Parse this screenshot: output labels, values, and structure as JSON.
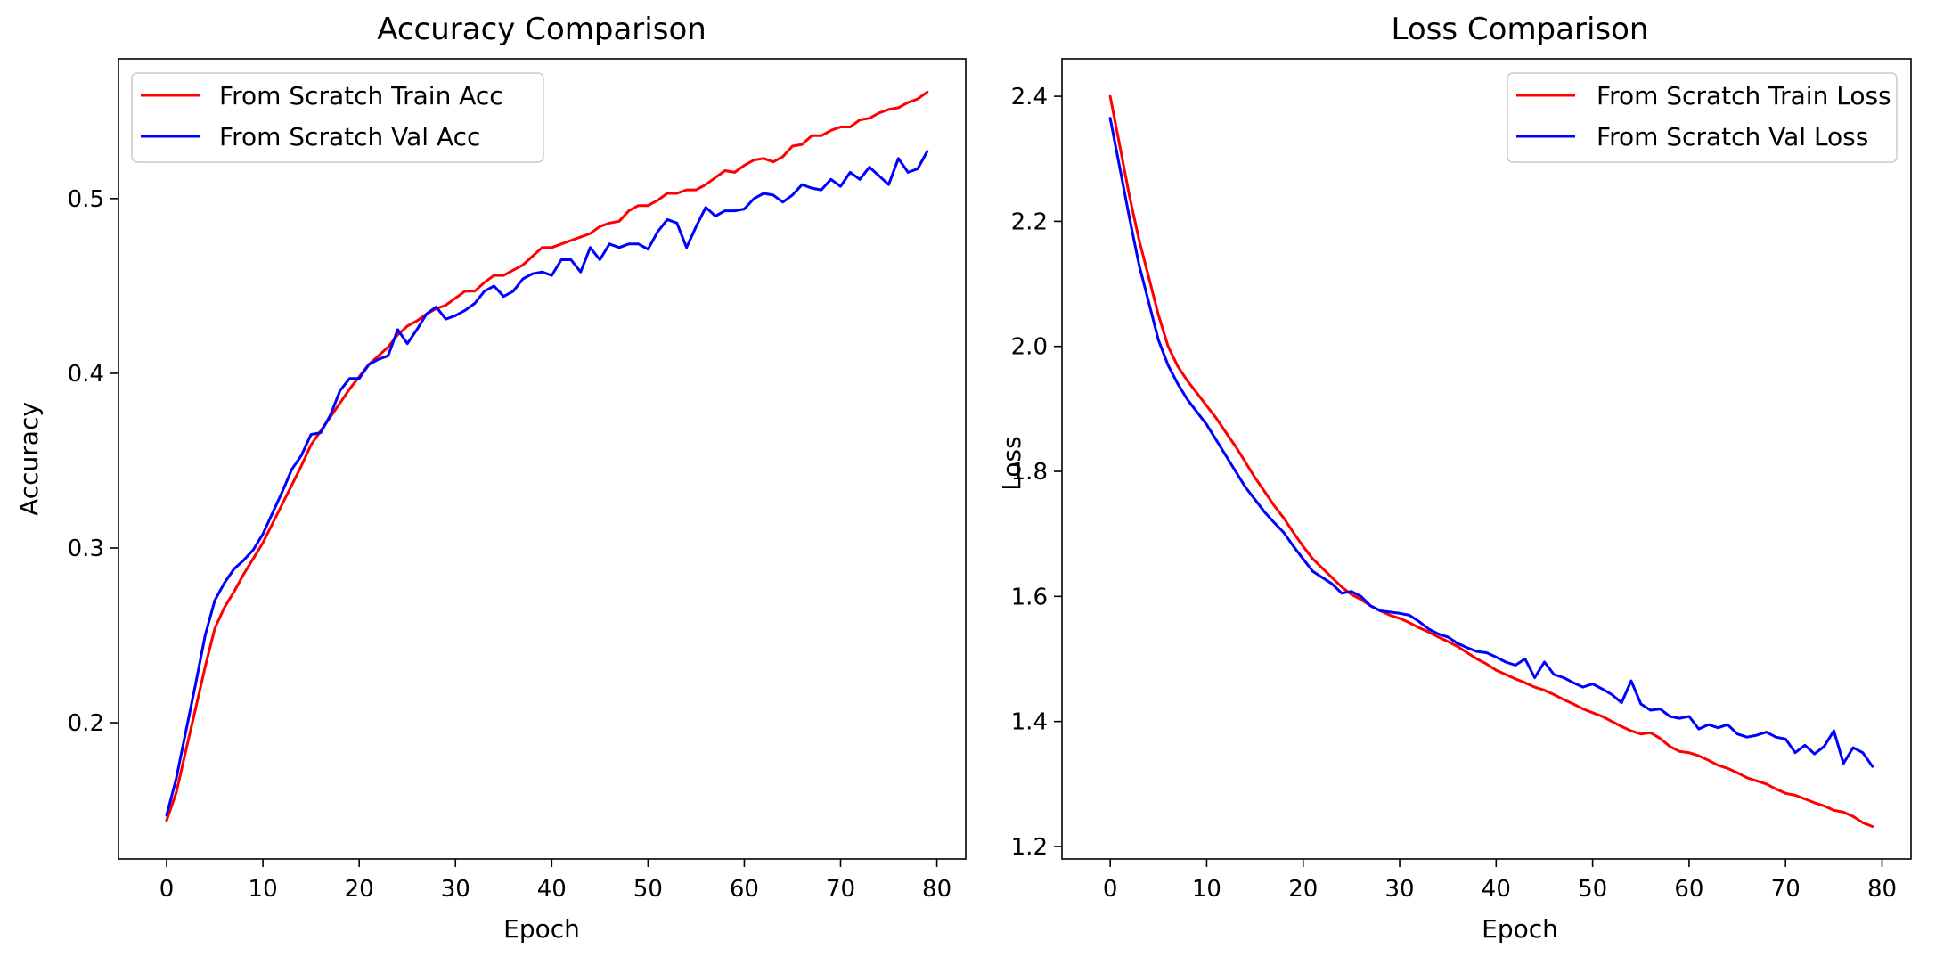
{
  "chart_data": [
    {
      "type": "line",
      "title": "Accuracy Comparison",
      "xlabel": "Epoch",
      "ylabel": "Accuracy",
      "xlim": [
        -5,
        83
      ],
      "ylim": [
        0.122,
        0.58
      ],
      "xticks": [
        0,
        10,
        20,
        30,
        40,
        50,
        60,
        70,
        80
      ],
      "yticks": [
        0.2,
        0.3,
        0.4,
        0.5
      ],
      "ytick_labels": [
        "0.2",
        "0.3",
        "0.4",
        "0.5"
      ],
      "grid": false,
      "legend_position": "upper left",
      "series": [
        {
          "name": "From Scratch Train Acc",
          "color": "#ff0000",
          "values": [
            0.144,
            0.16,
            0.184,
            0.208,
            0.232,
            0.254,
            0.266,
            0.275,
            0.285,
            0.294,
            0.303,
            0.314,
            0.325,
            0.336,
            0.347,
            0.359,
            0.367,
            0.375,
            0.383,
            0.391,
            0.398,
            0.405,
            0.41,
            0.415,
            0.422,
            0.427,
            0.43,
            0.434,
            0.437,
            0.439,
            0.443,
            0.447,
            0.447,
            0.452,
            0.456,
            0.456,
            0.459,
            0.462,
            0.467,
            0.472,
            0.472,
            0.474,
            0.476,
            0.478,
            0.48,
            0.484,
            0.486,
            0.487,
            0.493,
            0.496,
            0.496,
            0.499,
            0.503,
            0.503,
            0.505,
            0.505,
            0.508,
            0.512,
            0.516,
            0.515,
            0.519,
            0.522,
            0.523,
            0.521,
            0.524,
            0.53,
            0.531,
            0.536,
            0.536,
            0.539,
            0.541,
            0.541,
            0.545,
            0.546,
            0.549,
            0.551,
            0.552,
            0.555,
            0.557,
            0.561
          ]
        },
        {
          "name": "From Scratch Val Acc",
          "color": "#0000ff",
          "values": [
            0.147,
            0.168,
            0.195,
            0.222,
            0.25,
            0.27,
            0.28,
            0.288,
            0.293,
            0.299,
            0.308,
            0.32,
            0.332,
            0.345,
            0.353,
            0.365,
            0.366,
            0.376,
            0.39,
            0.397,
            0.397,
            0.405,
            0.408,
            0.41,
            0.425,
            0.417,
            0.425,
            0.434,
            0.438,
            0.431,
            0.433,
            0.436,
            0.44,
            0.447,
            0.45,
            0.444,
            0.447,
            0.454,
            0.457,
            0.458,
            0.456,
            0.465,
            0.465,
            0.458,
            0.472,
            0.465,
            0.474,
            0.472,
            0.474,
            0.474,
            0.471,
            0.481,
            0.488,
            0.486,
            0.472,
            0.484,
            0.495,
            0.49,
            0.493,
            0.493,
            0.494,
            0.5,
            0.503,
            0.502,
            0.498,
            0.502,
            0.508,
            0.506,
            0.505,
            0.511,
            0.507,
            0.515,
            0.511,
            0.518,
            0.513,
            0.508,
            0.523,
            0.515,
            0.517,
            0.527
          ]
        }
      ]
    },
    {
      "type": "line",
      "title": "Loss Comparison",
      "xlabel": "Epoch",
      "ylabel": "Loss",
      "xlim": [
        -5,
        83
      ],
      "ylim": [
        1.18,
        2.46
      ],
      "xticks": [
        0,
        10,
        20,
        30,
        40,
        50,
        60,
        70,
        80
      ],
      "yticks": [
        1.2,
        1.4,
        1.6,
        1.8,
        2.0,
        2.2,
        2.4
      ],
      "ytick_labels": [
        "1.2",
        "1.4",
        "1.6",
        "1.8",
        "2.0",
        "2.2",
        "2.4"
      ],
      "grid": false,
      "legend_position": "upper right",
      "series": [
        {
          "name": "From Scratch Train Loss",
          "color": "#ff0000",
          "values": [
            2.4,
            2.32,
            2.24,
            2.17,
            2.11,
            2.05,
            2.0,
            1.968,
            1.945,
            1.925,
            1.905,
            1.885,
            1.862,
            1.84,
            1.815,
            1.79,
            1.768,
            1.745,
            1.725,
            1.702,
            1.68,
            1.66,
            1.645,
            1.63,
            1.615,
            1.603,
            1.595,
            1.585,
            1.577,
            1.57,
            1.565,
            1.558,
            1.55,
            1.543,
            1.535,
            1.528,
            1.52,
            1.51,
            1.5,
            1.492,
            1.482,
            1.475,
            1.468,
            1.462,
            1.455,
            1.45,
            1.443,
            1.435,
            1.428,
            1.42,
            1.414,
            1.408,
            1.4,
            1.392,
            1.385,
            1.38,
            1.382,
            1.373,
            1.36,
            1.352,
            1.35,
            1.345,
            1.338,
            1.33,
            1.325,
            1.318,
            1.31,
            1.305,
            1.3,
            1.292,
            1.285,
            1.282,
            1.276,
            1.27,
            1.265,
            1.258,
            1.255,
            1.248,
            1.238,
            1.232
          ]
        },
        {
          "name": "From Scratch Val Loss",
          "color": "#0000ff",
          "values": [
            2.365,
            2.285,
            2.205,
            2.13,
            2.07,
            2.01,
            1.97,
            1.94,
            1.915,
            1.895,
            1.875,
            1.85,
            1.825,
            1.8,
            1.775,
            1.755,
            1.735,
            1.718,
            1.702,
            1.68,
            1.66,
            1.64,
            1.63,
            1.62,
            1.605,
            1.608,
            1.6,
            1.585,
            1.577,
            1.575,
            1.573,
            1.57,
            1.56,
            1.548,
            1.54,
            1.535,
            1.525,
            1.518,
            1.512,
            1.51,
            1.503,
            1.495,
            1.49,
            1.5,
            1.47,
            1.495,
            1.475,
            1.47,
            1.462,
            1.455,
            1.46,
            1.452,
            1.443,
            1.43,
            1.465,
            1.428,
            1.418,
            1.42,
            1.408,
            1.405,
            1.408,
            1.388,
            1.395,
            1.39,
            1.395,
            1.38,
            1.375,
            1.378,
            1.383,
            1.375,
            1.372,
            1.35,
            1.362,
            1.348,
            1.36,
            1.385,
            1.333,
            1.358,
            1.35,
            1.328
          ]
        }
      ]
    }
  ]
}
